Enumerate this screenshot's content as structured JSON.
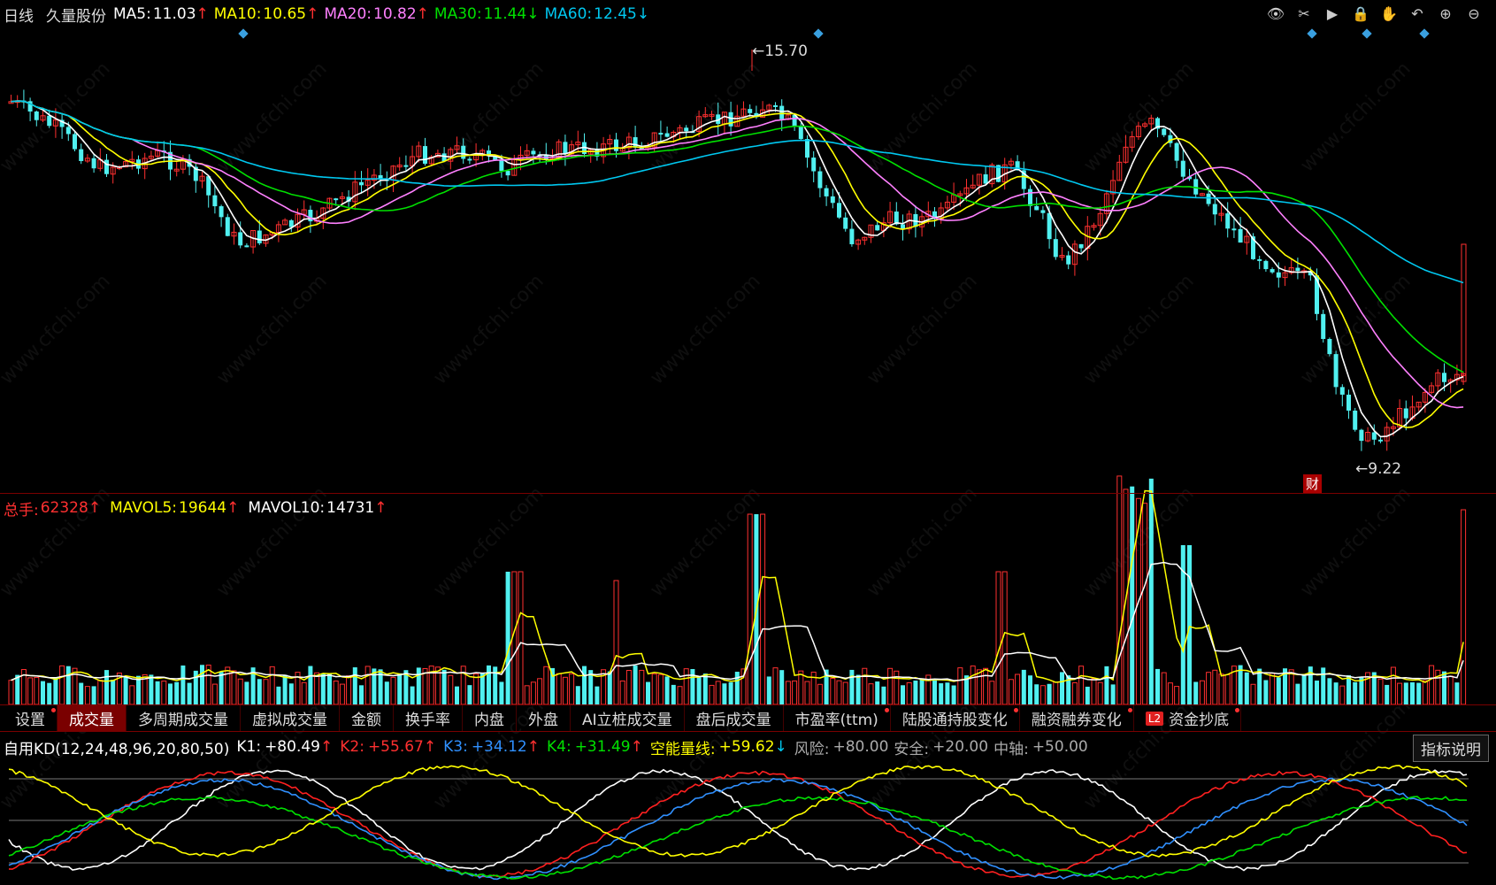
{
  "header": {
    "period": "日线",
    "stock_name": "久量股份",
    "ma5_label": "MA5:",
    "ma5_value": "11.03",
    "ma5_arrow": "↑",
    "ma10_label": "MA10:",
    "ma10_value": "10.65",
    "ma10_arrow": "↑",
    "ma20_label": "MA20:",
    "ma20_value": "10.82",
    "ma20_arrow": "↑",
    "ma30_label": "MA30:",
    "ma30_value": "11.44",
    "ma30_arrow": "↓",
    "ma60_label": "MA60:",
    "ma60_value": "12.45",
    "ma60_arrow": "↓"
  },
  "colors": {
    "ma5": "#ffffff",
    "ma10": "#ffff00",
    "ma20": "#ff80ff",
    "ma30": "#00e000",
    "ma60": "#00c8f0",
    "up": "#ff3030",
    "down": "#50f0f0",
    "accent": "#7a0000"
  },
  "price_annotations": {
    "high": "15.70",
    "low": "9.22",
    "finance_badge": "财"
  },
  "volume_header": {
    "total_label": "总手:",
    "total_value": "62328",
    "total_arrow": "↑",
    "mavol5_label": "MAVOL5:",
    "mavol5_value": "19644",
    "mavol5_arrow": "↑",
    "mavol10_label": "MAVOL10:",
    "mavol10_value": "14731",
    "mavol10_arrow": "↑"
  },
  "tabs": [
    {
      "label": "设置",
      "dot": true
    },
    {
      "label": "成交量",
      "dot": false,
      "active": true
    },
    {
      "label": "多周期成交量",
      "dot": false
    },
    {
      "label": "虚拟成交量",
      "dot": false
    },
    {
      "label": "金额",
      "dot": false
    },
    {
      "label": "换手率",
      "dot": false
    },
    {
      "label": "内盘",
      "dot": false
    },
    {
      "label": "外盘",
      "dot": false
    },
    {
      "label": "AI立桩成交量",
      "dot": false
    },
    {
      "label": "盘后成交量",
      "dot": false
    },
    {
      "label": "市盈率(ttm)",
      "dot": true
    },
    {
      "label": "陆股通持股变化",
      "dot": true
    },
    {
      "label": "融资融券变化",
      "dot": true
    },
    {
      "label": "资金抄底",
      "dot": true,
      "badge": "L2"
    }
  ],
  "indicator_header": {
    "name": "自用KD(12,24,48,96,20,80,50)",
    "k1_label": "K1:",
    "k1_value": "+80.49",
    "k1_arrow": "↑",
    "k2_label": "K2:",
    "k2_value": "+55.67",
    "k2_arrow": "↑",
    "k3_label": "K3:",
    "k3_value": "+34.12",
    "k3_arrow": "↑",
    "k4_label": "K4:",
    "k4_value": "+31.49",
    "k4_arrow": "↑",
    "energy_label": "空能量线:",
    "energy_value": "+59.62",
    "energy_arrow": "↓",
    "risk_label": "风险:",
    "risk_value": "+80.00",
    "safe_label": "安全:",
    "safe_value": "+20.00",
    "axis_label": "中轴:",
    "axis_value": "+50.00"
  },
  "explain_button": "指标说明",
  "toolbar_icons": [
    "eye-icon",
    "scissors-icon",
    "play-icon",
    "lock-icon",
    "hand-icon",
    "undo-icon",
    "zoom-in-icon",
    "zoom-out-icon"
  ],
  "watermark": "www.cfchi.com"
}
